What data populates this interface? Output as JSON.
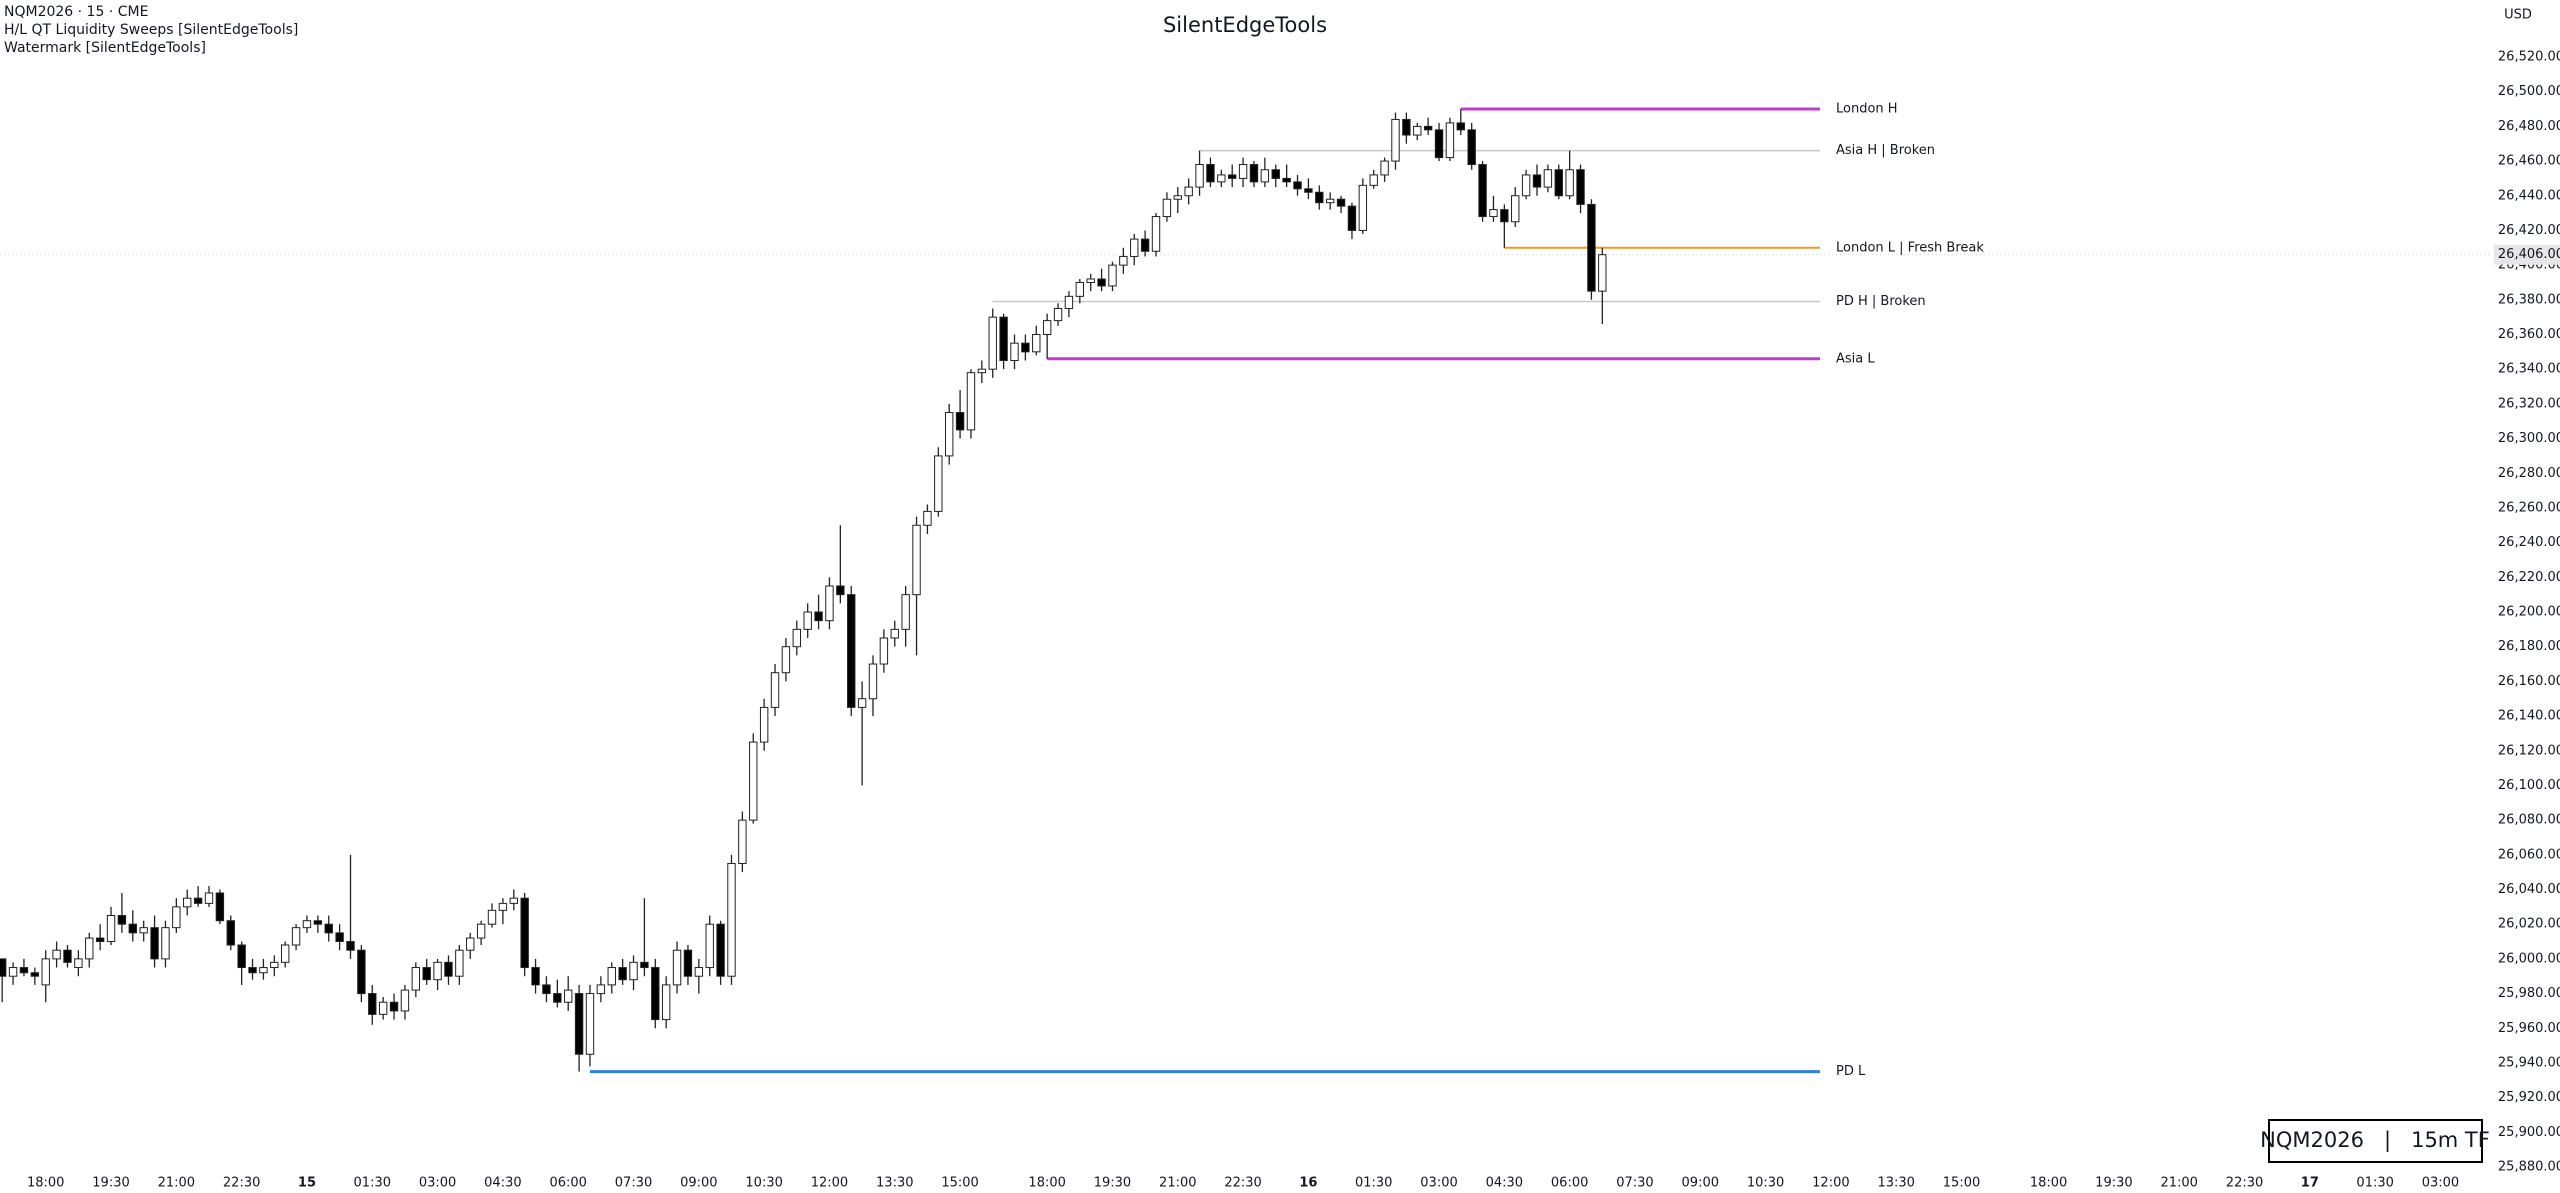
{
  "chart_data": {
    "type": "candlestick",
    "title": "SilentEdgeTools",
    "header": [
      "NQM2026 · 15 · CME",
      "H/L QT Liquidity Sweeps [SilentEdgeTools]",
      "Watermark [SilentEdgeTools]"
    ],
    "currency": "USD",
    "watermark": "NQM2026   |   15m TF",
    "bull_color": "#ffffff",
    "bear_color": "#000000",
    "outline_color": "#222222",
    "x": [
      -4,
      -3,
      -2,
      -1,
      0,
      1,
      2,
      3,
      4,
      5,
      6,
      7,
      8,
      9,
      10,
      11,
      12,
      13,
      14,
      15,
      16,
      17,
      18,
      19,
      20,
      21,
      22,
      23,
      24,
      25,
      26,
      27,
      28,
      29,
      30,
      31,
      32,
      33,
      34,
      35,
      36,
      37,
      38,
      39,
      40,
      41,
      42,
      43,
      44,
      45,
      46,
      47,
      48,
      49,
      50,
      51,
      52,
      53,
      54,
      55,
      56,
      57,
      58,
      59,
      60,
      61,
      62,
      63,
      64,
      65,
      66,
      67,
      68,
      69,
      70,
      71,
      72,
      73,
      74,
      75,
      76,
      77,
      78,
      79,
      80,
      81,
      82,
      83,
      84,
      85,
      86,
      87,
      88,
      89,
      90,
      91,
      92,
      93,
      94,
      95,
      96,
      97,
      98,
      99,
      100,
      101,
      102,
      103,
      104,
      105,
      106,
      107,
      108,
      109,
      110,
      111,
      112,
      113,
      114,
      115,
      116,
      117,
      118,
      119,
      120,
      121,
      122,
      123,
      124,
      125,
      126,
      127,
      128,
      129,
      130,
      131,
      132,
      133,
      134,
      135,
      136,
      137,
      138,
      139,
      140,
      141,
      142,
      143
    ],
    "open": [
      26000,
      25990,
      25995,
      25992,
      25985,
      26000,
      26005,
      25995,
      26000,
      26012,
      26010,
      26025,
      26020,
      26015,
      26018,
      26000,
      26018,
      26030,
      26035,
      26032,
      26038,
      26022,
      26008,
      25995,
      25992,
      25995,
      25998,
      26008,
      26018,
      26022,
      26020,
      26015,
      26010,
      26005,
      25980,
      25968,
      25975,
      25970,
      25982,
      25995,
      25988,
      25998,
      25990,
      26005,
      26012,
      26020,
      26028,
      26032,
      26035,
      25995,
      25985,
      25980,
      25975,
      25980,
      25945,
      25980,
      25985,
      25995,
      25988,
      25998,
      25995,
      25965,
      25985,
      26005,
      25990,
      25995,
      26020,
      25990,
      26055,
      26080,
      26125,
      26145,
      26165,
      26180,
      26190,
      26200,
      26195,
      26215,
      26210,
      26145,
      26150,
      26170,
      26185,
      26190,
      26210,
      26250,
      26258,
      26290,
      26315,
      26305,
      26338,
      26340,
      26370,
      26345,
      26355,
      26350,
      26360,
      26368,
      26375,
      26382,
      26390,
      26392,
      26388,
      26400,
      26405,
      26415,
      26408,
      26428,
      26438,
      26440,
      26445,
      26458,
      26448,
      26452,
      26450,
      26458,
      26448,
      26455,
      26450,
      26448,
      26444,
      26442,
      26436,
      26438,
      26434,
      26420,
      26446,
      26452,
      26460,
      26484,
      26475,
      26480,
      26478,
      26462,
      26482,
      26478,
      26458,
      26428,
      26432,
      26425,
      26440,
      26452,
      26445,
      26455,
      26440,
      26455,
      26435,
      26385
    ],
    "high": [
      26000,
      25998,
      26000,
      25995,
      26005,
      26010,
      26008,
      26005,
      26015,
      26020,
      26030,
      26038,
      26028,
      26022,
      26025,
      26022,
      26035,
      26040,
      26042,
      26042,
      26040,
      26025,
      26010,
      26000,
      26000,
      26002,
      26010,
      26020,
      26025,
      26025,
      26025,
      26020,
      26060,
      26008,
      25985,
      25978,
      25980,
      25985,
      25998,
      26000,
      26000,
      26002,
      26008,
      26015,
      26022,
      26032,
      26035,
      26040,
      26038,
      26000,
      25990,
      25988,
      25990,
      25985,
      25985,
      25990,
      25998,
      26000,
      26002,
      26035,
      26000,
      25990,
      26010,
      26008,
      26000,
      26025,
      26022,
      26060,
      26085,
      26130,
      26150,
      26170,
      26185,
      26195,
      26205,
      26210,
      26220,
      26250,
      26215,
      26160,
      26175,
      26190,
      26195,
      26215,
      26255,
      26262,
      26295,
      26320,
      26328,
      26340,
      26345,
      26375,
      26372,
      26360,
      26360,
      26365,
      26372,
      26378,
      26385,
      26392,
      26395,
      26398,
      26402,
      26410,
      26418,
      26420,
      26430,
      26442,
      26445,
      26450,
      26466,
      26462,
      26455,
      26458,
      26462,
      26460,
      26462,
      26458,
      26458,
      26452,
      26450,
      26446,
      26442,
      26440,
      26436,
      26450,
      26455,
      26462,
      26488,
      26488,
      26482,
      26485,
      26482,
      26485,
      26490,
      26482,
      26460,
      26440,
      26435,
      26445,
      26455,
      26458,
      26458,
      26458,
      26466,
      26458,
      26438,
      26410
    ],
    "low": [
      25975,
      25985,
      25990,
      25985,
      25975,
      25995,
      25995,
      25990,
      25995,
      26005,
      26008,
      26015,
      26010,
      26010,
      25995,
      25995,
      26015,
      26025,
      26030,
      26030,
      26020,
      26005,
      25985,
      25988,
      25988,
      25990,
      25995,
      26005,
      26015,
      26015,
      26010,
      26005,
      26000,
      25975,
      25962,
      25965,
      25965,
      25965,
      25978,
      25985,
      25982,
      25985,
      25985,
      26000,
      26008,
      26018,
      26020,
      26028,
      25990,
      25980,
      25975,
      25972,
      25970,
      25935,
      25938,
      25975,
      25980,
      25985,
      25982,
      25990,
      25960,
      25960,
      25980,
      25985,
      25980,
      25990,
      25985,
      25985,
      26050,
      26078,
      26120,
      26140,
      26160,
      26175,
      26185,
      26190,
      26190,
      26205,
      26140,
      26100,
      26140,
      26165,
      26180,
      26180,
      26175,
      26245,
      26255,
      26285,
      26300,
      26300,
      26332,
      26335,
      26340,
      26340,
      26345,
      26348,
      26346,
      26365,
      26370,
      26378,
      26385,
      26385,
      26385,
      26395,
      26400,
      26405,
      26405,
      26425,
      26430,
      26435,
      26440,
      26445,
      26445,
      26445,
      26445,
      26445,
      26445,
      26445,
      26445,
      26440,
      26438,
      26432,
      26432,
      26430,
      26415,
      26418,
      26444,
      26448,
      26455,
      26470,
      26472,
      26475,
      26460,
      26460,
      26475,
      26455,
      26425,
      26425,
      26410,
      26422,
      26438,
      26440,
      26442,
      26438,
      26438,
      26430,
      26380,
      26366
    ],
    "close": [
      25990,
      25995,
      25992,
      25990,
      26000,
      26005,
      25998,
      26000,
      26012,
      26010,
      26025,
      26020,
      26015,
      26018,
      26000,
      26018,
      26030,
      26035,
      26032,
      26038,
      26022,
      26008,
      25995,
      25992,
      25995,
      25998,
      26008,
      26018,
      26022,
      26020,
      26015,
      26010,
      26005,
      25980,
      25968,
      25975,
      25970,
      25982,
      25995,
      25988,
      25998,
      25990,
      26005,
      26012,
      26020,
      26028,
      26032,
      26035,
      25995,
      25985,
      25980,
      25975,
      25982,
      25945,
      25980,
      25985,
      25995,
      25988,
      25998,
      25995,
      25965,
      25985,
      26005,
      25990,
      25995,
      26020,
      25990,
      26055,
      26080,
      26125,
      26145,
      26165,
      26180,
      26190,
      26200,
      26195,
      26215,
      26210,
      26145,
      26150,
      26170,
      26185,
      26190,
      26210,
      26250,
      26258,
      26290,
      26315,
      26305,
      26338,
      26340,
      26370,
      26345,
      26355,
      26350,
      26360,
      26368,
      26375,
      26382,
      26390,
      26392,
      26388,
      26400,
      26405,
      26415,
      26408,
      26428,
      26438,
      26440,
      26445,
      26458,
      26448,
      26452,
      26450,
      26458,
      26448,
      26455,
      26450,
      26448,
      26444,
      26442,
      26436,
      26438,
      26434,
      26420,
      26446,
      26452,
      26460,
      26484,
      26475,
      26480,
      26478,
      26462,
      26482,
      26478,
      26458,
      26428,
      26432,
      26425,
      26440,
      26452,
      26445,
      26455,
      26440,
      26455,
      26435,
      26385,
      26406
    ],
    "xlim": [
      -4.2,
      224.55
    ],
    "ylim": [
      25880,
      26520
    ],
    "xticks": [
      {
        "value": 0,
        "label": "18:00"
      },
      {
        "value": 6,
        "label": "19:30"
      },
      {
        "value": 12,
        "label": "21:00"
      },
      {
        "value": 18,
        "label": "22:30"
      },
      {
        "value": 24,
        "label": "15"
      },
      {
        "value": 30,
        "label": "01:30"
      },
      {
        "value": 36,
        "label": "03:00"
      },
      {
        "value": 42,
        "label": "04:30"
      },
      {
        "value": 48,
        "label": "06:00"
      },
      {
        "value": 54,
        "label": "07:30"
      },
      {
        "value": 60,
        "label": "09:00"
      },
      {
        "value": 66,
        "label": "10:30"
      },
      {
        "value": 72,
        "label": "12:00"
      },
      {
        "value": 78,
        "label": "13:30"
      },
      {
        "value": 84,
        "label": "15:00"
      },
      {
        "value": 92,
        "label": "18:00"
      },
      {
        "value": 98,
        "label": "19:30"
      },
      {
        "value": 104,
        "label": "21:00"
      },
      {
        "value": 110,
        "label": "22:30"
      },
      {
        "value": 116,
        "label": "16"
      },
      {
        "value": 122,
        "label": "01:30"
      },
      {
        "value": 128,
        "label": "03:00"
      },
      {
        "value": 134,
        "label": "04:30"
      },
      {
        "value": 140,
        "label": "06:00"
      },
      {
        "value": 146,
        "label": "07:30"
      },
      {
        "value": 152,
        "label": "09:00"
      },
      {
        "value": 158,
        "label": "10:30"
      },
      {
        "value": 164,
        "label": "12:00"
      },
      {
        "value": 170,
        "label": "13:30"
      },
      {
        "value": 176,
        "label": "15:00"
      },
      {
        "value": 184,
        "label": "18:00"
      },
      {
        "value": 190,
        "label": "19:30"
      },
      {
        "value": 196,
        "label": "21:00"
      },
      {
        "value": 202,
        "label": "22:30"
      },
      {
        "value": 208,
        "label": "17"
      },
      {
        "value": 214,
        "label": "01:30"
      },
      {
        "value": 220,
        "label": "03:00"
      }
    ],
    "yticks": [
      {
        "value": 25880,
        "label": "25,880.00"
      },
      {
        "value": 25900,
        "label": "25,900.00"
      },
      {
        "value": 25920,
        "label": "25,920.00"
      },
      {
        "value": 25940,
        "label": "25,940.00"
      },
      {
        "value": 25960,
        "label": "25,960.00"
      },
      {
        "value": 25980,
        "label": "25,980.00"
      },
      {
        "value": 26000,
        "label": "26,000.00"
      },
      {
        "value": 26020,
        "label": "26,020.00"
      },
      {
        "value": 26040,
        "label": "26,040.00"
      },
      {
        "value": 26060,
        "label": "26,060.00"
      },
      {
        "value": 26080,
        "label": "26,080.00"
      },
      {
        "value": 26100,
        "label": "26,100.00"
      },
      {
        "value": 26120,
        "label": "26,120.00"
      },
      {
        "value": 26140,
        "label": "26,140.00"
      },
      {
        "value": 26160,
        "label": "26,160.00"
      },
      {
        "value": 26180,
        "label": "26,180.00"
      },
      {
        "value": 26200,
        "label": "26,200.00"
      },
      {
        "value": 26220,
        "label": "26,220.00"
      },
      {
        "value": 26240,
        "label": "26,240.00"
      },
      {
        "value": 26260,
        "label": "26,260.00"
      },
      {
        "value": 26280,
        "label": "26,280.00"
      },
      {
        "value": 26300,
        "label": "26,300.00"
      },
      {
        "value": 26320,
        "label": "26,320.00"
      },
      {
        "value": 26340,
        "label": "26,340.00"
      },
      {
        "value": 26360,
        "label": "26,360.00"
      },
      {
        "value": 26380,
        "label": "26,380.00"
      },
      {
        "value": 26400,
        "label": "26,400.00"
      },
      {
        "value": 26420,
        "label": "26,420.00"
      },
      {
        "value": 26440,
        "label": "26,440.00"
      },
      {
        "value": 26460,
        "label": "26,460.00"
      },
      {
        "value": 26480,
        "label": "26,480.00"
      },
      {
        "value": 26500,
        "label": "26,500.00"
      },
      {
        "value": 26520,
        "label": "26,520.00"
      }
    ],
    "grid": false,
    "last_price": {
      "value": 26406,
      "label": "26,406.00"
    },
    "levels": [
      {
        "name": "London H",
        "price": 26490,
        "start": 130,
        "color": "#c23ad1",
        "width": 3
      },
      {
        "name": "Asia H | Broken",
        "price": 26466,
        "start": 106,
        "color": "#c8c8c8",
        "width": 1.5
      },
      {
        "name": "London L | Fresh Break",
        "price": 26410,
        "start": 134,
        "color": "#f39a1e",
        "width": 2
      },
      {
        "name": "PD H | Broken",
        "price": 26379,
        "start": 87,
        "color": "#c8c8c8",
        "width": 1.5
      },
      {
        "name": "Asia L",
        "price": 26346,
        "start": 92,
        "color": "#c23ad1",
        "width": 3
      },
      {
        "name": "PD L",
        "price": 25935,
        "start": 50,
        "color": "#2f7fe0",
        "width": 3
      }
    ]
  }
}
